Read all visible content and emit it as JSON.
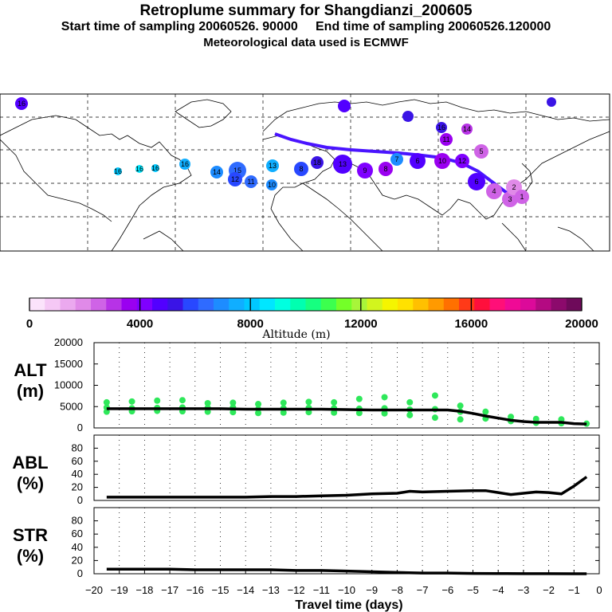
{
  "header": {
    "title": "Retroplume summary for Shangdianzi_200605",
    "sampling": "Start time of sampling 20060526. 90000     End time of sampling 20060526.120000",
    "met": "Meteorological data used is ECMWF"
  },
  "colorbar": {
    "label": "Altitude (m)",
    "ticks": [
      "0",
      "4000",
      "8000",
      "12000",
      "16000",
      "20000"
    ],
    "colors": [
      "#fbe3fb",
      "#f5c8f5",
      "#eba9ef",
      "#e08ae8",
      "#cf63e6",
      "#b733e6",
      "#9a00f0",
      "#7f00ff",
      "#5200ff",
      "#3a14e6",
      "#2848ff",
      "#2f6bff",
      "#1d8cff",
      "#10aeff",
      "#00c8ff",
      "#00e6ff",
      "#00ffe0",
      "#00ffb0",
      "#16ff80",
      "#3cff4e",
      "#74ff28",
      "#a8f53a",
      "#d2f51e",
      "#f5f500",
      "#ffe100",
      "#ffc000",
      "#ff9a00",
      "#ff7000",
      "#ff3a18",
      "#ff0f3c",
      "#ff0f78",
      "#f00a96",
      "#dc0a9a",
      "#b40a82",
      "#8c0a6c",
      "#6e0a5a"
    ]
  },
  "map": {
    "trajectory_labels": [
      "16",
      "16",
      "16",
      "16",
      "16",
      "14",
      "15",
      "12",
      "11",
      "13",
      "10",
      "8",
      "18",
      "13",
      "9",
      "8",
      "7",
      "6",
      "10",
      "12",
      "11",
      "16",
      "14",
      "5",
      "6",
      "4",
      "3",
      "2",
      "1"
    ]
  },
  "chart_data": [
    {
      "type": "scatter",
      "panel": "ALT",
      "ylabel": "ALT\n(m)",
      "title_lines": [
        "ALT",
        "(m)"
      ],
      "ylim": [
        0,
        20000
      ],
      "yticks": [
        "0",
        "5000",
        "10000",
        "15000",
        "20000"
      ],
      "xlim": [
        -20,
        0
      ],
      "median": {
        "x": [
          -19.5,
          -19,
          -18,
          -17,
          -16,
          -15,
          -14,
          -13,
          -12,
          -11,
          -10,
          -9,
          -8,
          -7,
          -6,
          -5.5,
          -5,
          -4.5,
          -4,
          -3.5,
          -3,
          -2.5,
          -2,
          -1.5,
          -1,
          -0.5
        ],
        "y": [
          4500,
          4500,
          4500,
          4500,
          4500,
          4500,
          4400,
          4400,
          4400,
          4400,
          4300,
          4200,
          4200,
          4200,
          4200,
          3900,
          3400,
          2800,
          2300,
          1800,
          1500,
          1300,
          1300,
          1300,
          1000,
          900
        ]
      },
      "points": {
        "x": [
          -19.5,
          -19.5,
          -19.5,
          -18.5,
          -18.5,
          -18.5,
          -17.5,
          -17.5,
          -17.5,
          -16.5,
          -16.5,
          -16.5,
          -15.5,
          -15.5,
          -15.5,
          -14.5,
          -14.5,
          -14.5,
          -13.5,
          -13.5,
          -13.5,
          -12.5,
          -12.5,
          -12.5,
          -11.5,
          -11.5,
          -11.5,
          -10.5,
          -10.5,
          -10.5,
          -9.5,
          -9.5,
          -9.5,
          -8.5,
          -8.5,
          -8.5,
          -7.5,
          -7.5,
          -7.5,
          -6.5,
          -6.5,
          -6.5,
          -5.5,
          -5.5,
          -5.5,
          -4.5,
          -4.5,
          -3.5,
          -3.5,
          -2.5,
          -2.5,
          -1.5,
          -1.5,
          -0.5
        ],
        "y": [
          6000,
          4800,
          3800,
          6200,
          4600,
          3900,
          6400,
          4700,
          4000,
          6500,
          4800,
          3900,
          5800,
          4700,
          3800,
          5900,
          4800,
          3700,
          5600,
          4400,
          3500,
          5900,
          4600,
          3600,
          6100,
          4700,
          3700,
          6000,
          4600,
          3600,
          6800,
          4500,
          3500,
          7200,
          4600,
          3400,
          6000,
          4300,
          3000,
          7600,
          4400,
          2400,
          5200,
          3800,
          2000,
          3800,
          2200,
          2600,
          1600,
          2100,
          1200,
          2000,
          1100,
          1000
        ]
      }
    },
    {
      "type": "line",
      "panel": "ABL",
      "title_lines": [
        "ABL",
        "(%)"
      ],
      "ylim": [
        0,
        100
      ],
      "yticks": [
        "0",
        "20",
        "40",
        "60",
        "80"
      ],
      "x": [
        -19.5,
        -18,
        -17,
        -16,
        -15,
        -14,
        -13,
        -12,
        -11,
        -10,
        -9,
        -8,
        -7.5,
        -7,
        -6,
        -5,
        -4.5,
        -4,
        -3.5,
        -3,
        -2.5,
        -2,
        -1.5,
        -1,
        -0.5
      ],
      "y": [
        5,
        5,
        5,
        5,
        5,
        5,
        6,
        6,
        7,
        8,
        10,
        11,
        14,
        13,
        14,
        15,
        15,
        12,
        9,
        11,
        13,
        12,
        10,
        22,
        36
      ]
    },
    {
      "type": "line",
      "panel": "STR",
      "title_lines": [
        "STR",
        "(%)"
      ],
      "ylim": [
        0,
        100
      ],
      "yticks": [
        "0",
        "20",
        "40",
        "60",
        "80"
      ],
      "x": [
        -19.5,
        -18,
        -17,
        -16,
        -15,
        -14,
        -13,
        -12,
        -11,
        -10,
        -9,
        -8,
        -7,
        -6,
        -5,
        -4,
        -3,
        -2,
        -1,
        -0.5
      ],
      "y": [
        7,
        7,
        7,
        6,
        6,
        6,
        6,
        5,
        5,
        4,
        3,
        2,
        1,
        1,
        0.5,
        0.3,
        0.2,
        0.1,
        0,
        0
      ]
    }
  ],
  "xaxis": {
    "label": "Travel time (days)",
    "ticks": [
      "−20",
      "−19",
      "−18",
      "−17",
      "−16",
      "−15",
      "−14",
      "−13",
      "−12",
      "−11",
      "−10",
      "−9",
      "−8",
      "−7",
      "−6",
      "−5",
      "−4",
      "−3",
      "−2",
      "−1",
      "0"
    ]
  }
}
